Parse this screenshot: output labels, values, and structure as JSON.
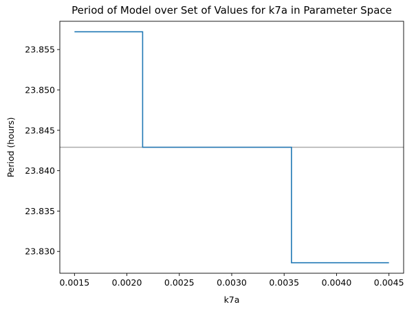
{
  "chart_data": {
    "type": "line",
    "title": "Period of Model over Set of Values for k7a in Parameter Space",
    "xlabel": "k7a",
    "ylabel": "Period (hours)",
    "xlim": [
      0.00136,
      0.00464
    ],
    "ylim": [
      23.8273,
      23.8585
    ],
    "xticks": [
      0.0015,
      0.002,
      0.0025,
      0.003,
      0.0035,
      0.004,
      0.0045
    ],
    "xtick_labels": [
      "0.0015",
      "0.0020",
      "0.0025",
      "0.0030",
      "0.0035",
      "0.0040",
      "0.0045"
    ],
    "yticks": [
      23.83,
      23.835,
      23.84,
      23.845,
      23.85,
      23.855
    ],
    "ytick_labels": [
      "23.830",
      "23.835",
      "23.840",
      "23.845",
      "23.850",
      "23.855"
    ],
    "grid": false,
    "series": [
      {
        "color": "#1f77b4",
        "x": [
          0.0015,
          0.00215,
          0.00215,
          0.00357,
          0.00357,
          0.0045
        ],
        "y": [
          23.8572,
          23.8572,
          23.8429,
          23.8429,
          23.8286,
          23.8286
        ]
      }
    ],
    "reference_line": {
      "orientation": "horizontal",
      "y": 23.8429,
      "color": "#aaaaaa"
    }
  }
}
